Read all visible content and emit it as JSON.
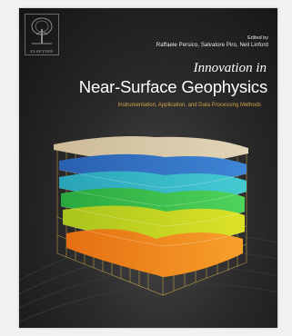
{
  "cover": {
    "publisher": "ELSEVIER",
    "edited_by": "Edited by",
    "editors": "Raffaele Persico, Salvatore Piro, Neil Linford",
    "title_line1": "Innovation in",
    "title_line2": "Near-Surface Geophysics",
    "subtitle": "Instrumentation, Application, and Data Processing Methods"
  },
  "colors": {
    "background": "#1e1e1e",
    "title": "#ffffff",
    "subtitle": "#d4a24a",
    "layer_top": "#d8c7a8",
    "layer_blue": "#2f6fbf",
    "layer_cyan": "#2fb7c8",
    "layer_green": "#36c04a",
    "layer_yellow": "#c9d61f",
    "layer_orange": "#f0851e"
  },
  "icons": {
    "logo": "elsevier-tree-icon"
  }
}
